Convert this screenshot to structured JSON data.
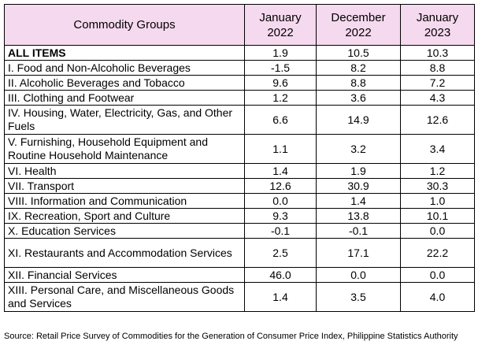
{
  "table": {
    "headers": [
      "Commodity Groups",
      "January\n2022",
      "December\n2022",
      "January\n2023"
    ],
    "header_lines": [
      [
        "Commodity Groups"
      ],
      [
        "January",
        "2022"
      ],
      [
        "December",
        "2022"
      ],
      [
        "January",
        "2023"
      ]
    ],
    "rows": [
      {
        "label": "ALL ITEMS",
        "values": [
          "1.9",
          "10.5",
          "10.3"
        ]
      },
      {
        "label": "I. Food and Non-Alcoholic Beverages",
        "values": [
          "-1.5",
          "8.2",
          "8.8"
        ]
      },
      {
        "label": "II. Alcoholic Beverages and Tobacco",
        "values": [
          "9.6",
          "8.8",
          "7.2"
        ]
      },
      {
        "label": "III. Clothing and Footwear",
        "values": [
          "1.2",
          "3.6",
          "4.3"
        ]
      },
      {
        "label": "IV. Housing, Water, Electricity, Gas, and Other Fuels",
        "values": [
          "6.6",
          "14.9",
          "12.6"
        ]
      },
      {
        "label": "V. Furnishing, Household Equipment and Routine Household Maintenance",
        "values": [
          "1.1",
          "3.2",
          "3.4"
        ]
      },
      {
        "label": "VI. Health",
        "values": [
          "1.4",
          "1.9",
          "1.2"
        ]
      },
      {
        "label": "VII. Transport",
        "values": [
          "12.6",
          "30.9",
          "30.3"
        ]
      },
      {
        "label": "VIII. Information and Communication",
        "values": [
          "0.0",
          "1.4",
          "1.0"
        ]
      },
      {
        "label": "IX. Recreation, Sport and Culture",
        "values": [
          "9.3",
          "13.8",
          "10.1"
        ]
      },
      {
        "label": "X. Education Services",
        "values": [
          "-0.1",
          "-0.1",
          "0.0"
        ]
      },
      {
        "label": "XI. Restaurants and Accommodation Services",
        "values": [
          "2.5",
          "17.1",
          "22.2"
        ]
      },
      {
        "label": "XII. Financial Services",
        "values": [
          "46.0",
          "0.0",
          "0.0"
        ]
      },
      {
        "label": "XIII. Personal Care, and Miscellaneous Goods and Services",
        "values": [
          "1.4",
          "3.5",
          "4.0"
        ]
      }
    ]
  },
  "source": "Source: Retail Price Survey of Commodities for the Generation of Consumer Price Index, Philippine Statistics Authority",
  "colors": {
    "header_background": "#f5d9ee",
    "border": "#000000"
  }
}
